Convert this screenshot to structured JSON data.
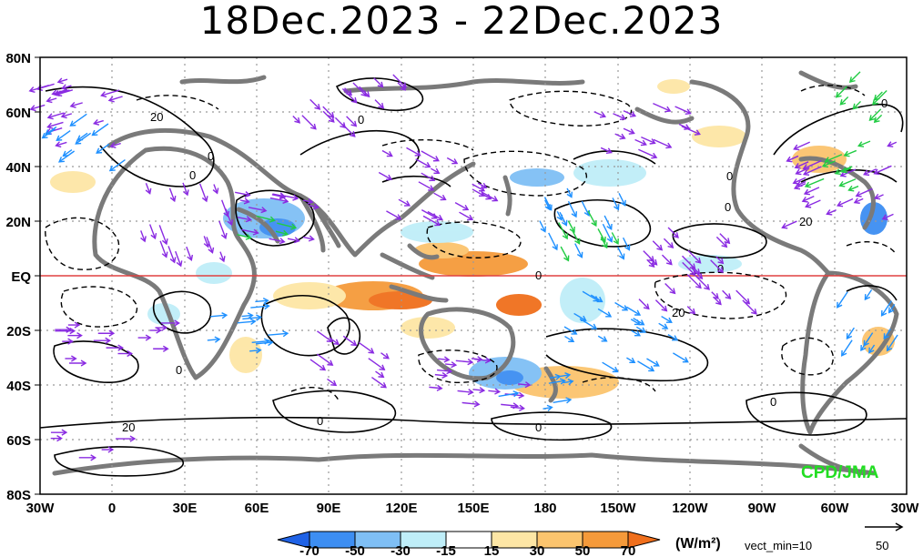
{
  "title": "18Dec.2023 - 22Dec.2023",
  "lat_labels": [
    "80N",
    "60N",
    "40N",
    "20N",
    "EQ",
    "20S",
    "40S",
    "60S",
    "80S"
  ],
  "lon_labels": [
    "30W",
    "0",
    "30E",
    "60E",
    "90E",
    "120E",
    "150E",
    "180",
    "150W",
    "120W",
    "90W",
    "60W",
    "30W"
  ],
  "colorbar": {
    "ticks": [
      "-70",
      "-50",
      "-30",
      "-15",
      "15",
      "30",
      "50",
      "70"
    ],
    "colors": [
      "#1f62e6",
      "#3d8ef2",
      "#7fbff5",
      "#bfeef8",
      "#ffffff",
      "#fde6a5",
      "#fbc46e",
      "#f59a3a",
      "#f06f1c"
    ]
  },
  "units": "(W/m²)",
  "vector_note": "vect_min=10",
  "ref_vector_label": "50",
  "credit": "CPD/JMA",
  "contour_labels": [
    "20",
    "0",
    "0",
    "0",
    "0",
    "0",
    "0",
    "20",
    "0",
    "20",
    "0",
    "0",
    "0",
    "20",
    "0",
    "0"
  ]
}
